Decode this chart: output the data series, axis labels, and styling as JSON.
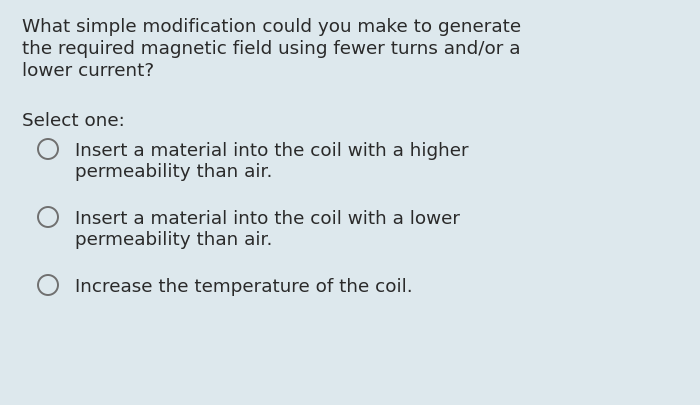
{
  "background_color": "#dde8ed",
  "text_color": "#2a2a2a",
  "question_lines": [
    "What simple modification could you make to generate",
    "the required magnetic field using fewer turns and/or a",
    "lower current?"
  ],
  "select_label": "Select one:",
  "options": [
    [
      "Insert a material into the coil with a higher",
      "permeability than air."
    ],
    [
      "Insert a material into the coil with a lower",
      "permeability than air."
    ],
    [
      "Increase the temperature of the coil."
    ]
  ],
  "question_fontsize": 13.2,
  "option_fontsize": 13.2,
  "select_fontsize": 13.2,
  "circle_color": "#707070",
  "fig_width": 7.0,
  "fig_height": 4.06,
  "dpi": 100
}
